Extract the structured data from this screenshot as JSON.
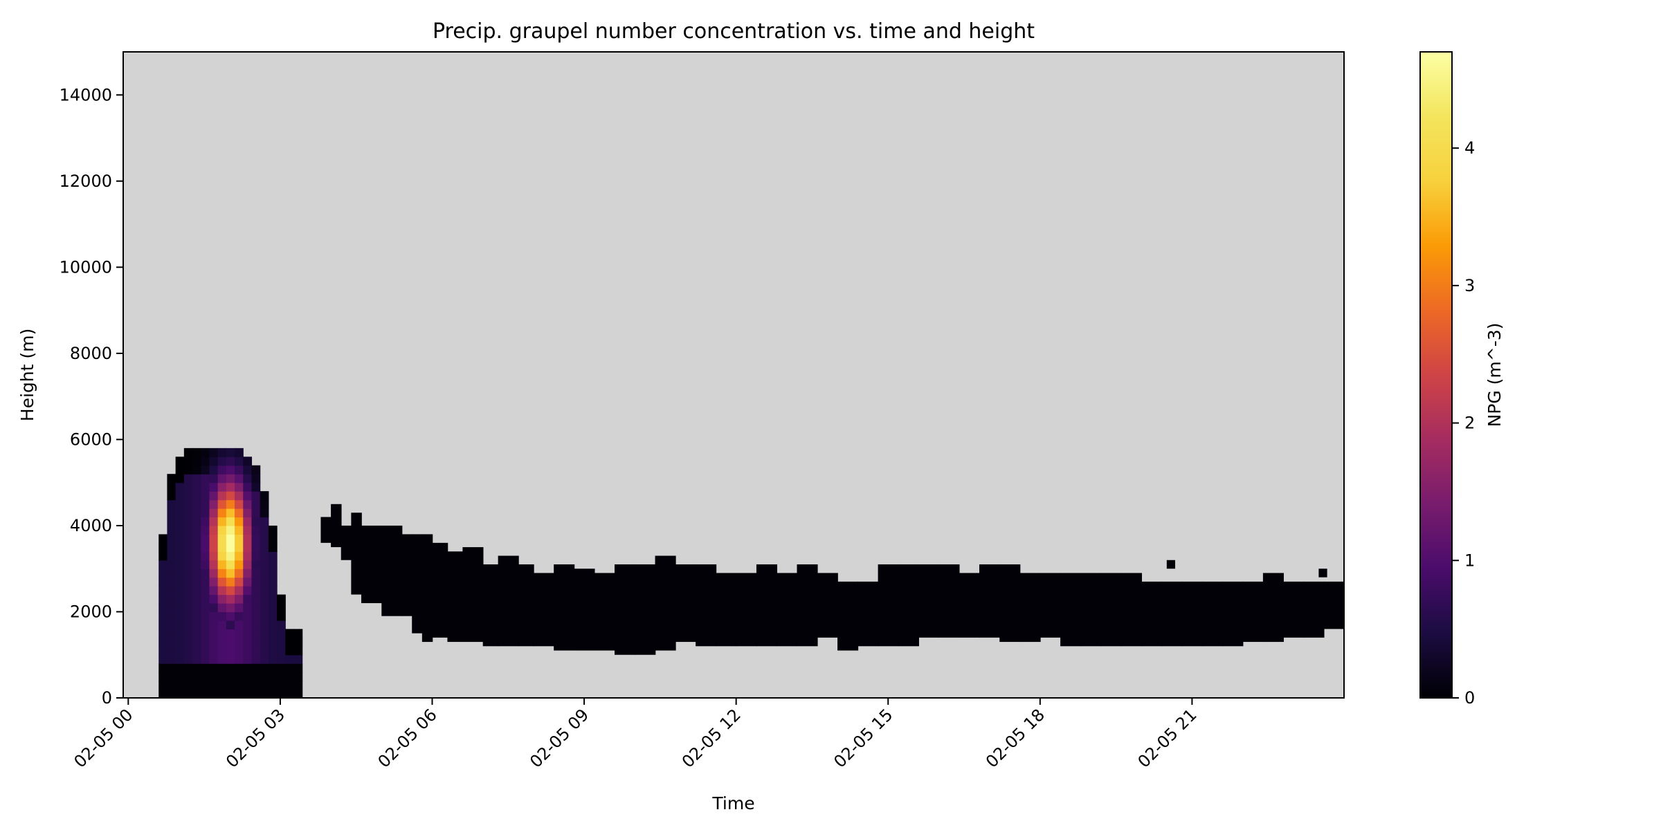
{
  "chart_data": {
    "type": "heatmap",
    "title": "Precip. graupel number concentration vs. time and height",
    "xlabel": "Time",
    "ylabel": "Height (m)",
    "colorbar_label": "NPG (m^-3)",
    "colormap": "inferno",
    "missing_color": "#d3d3d3",
    "xlim_hours": [
      -0.1,
      24.0
    ],
    "ylim": [
      0,
      15000
    ],
    "x_ticks": [
      {
        "hour": 0,
        "label": "02-05 00"
      },
      {
        "hour": 3,
        "label": "02-05 03"
      },
      {
        "hour": 6,
        "label": "02-05 06"
      },
      {
        "hour": 9,
        "label": "02-05 09"
      },
      {
        "hour": 12,
        "label": "02-05 12"
      },
      {
        "hour": 15,
        "label": "02-05 15"
      },
      {
        "hour": 18,
        "label": "02-05 18"
      },
      {
        "hour": 21,
        "label": "02-05 21"
      }
    ],
    "y_ticks": [
      0,
      2000,
      4000,
      6000,
      8000,
      10000,
      12000,
      14000
    ],
    "colorbar_range": [
      0,
      4.7
    ],
    "colorbar_ticks": [
      0,
      1,
      2,
      3,
      4
    ],
    "grid": false,
    "time_step_hours": 0.1667,
    "height_step_m": 200,
    "convective_cell": {
      "start_hour": 0.6,
      "end_hour": 3.3,
      "peak_hour": 2.0,
      "peak_height_m": 3600,
      "peak_value": 4.7,
      "top_profile": [
        [
          0.6,
          2600
        ],
        [
          0.77,
          5000
        ],
        [
          0.95,
          5600
        ],
        [
          1.3,
          5800
        ],
        [
          2.25,
          5800
        ],
        [
          2.45,
          5600
        ],
        [
          2.6,
          5200
        ],
        [
          2.8,
          4300
        ],
        [
          2.95,
          3200
        ],
        [
          3.1,
          1500
        ],
        [
          3.3,
          1500
        ]
      ]
    },
    "stratiform_layer": [
      [
        3.8,
        3600,
        4200
      ],
      [
        4.0,
        3500,
        4500
      ],
      [
        4.2,
        3200,
        4000
      ],
      [
        4.4,
        2400,
        4300
      ],
      [
        4.6,
        2200,
        4000
      ],
      [
        5.0,
        1900,
        4000
      ],
      [
        5.4,
        1900,
        3800
      ],
      [
        5.6,
        1500,
        3800
      ],
      [
        5.8,
        1300,
        3800
      ],
      [
        6.0,
        1400,
        3600
      ],
      [
        6.3,
        1300,
        3400
      ],
      [
        6.6,
        1300,
        3500
      ],
      [
        7.0,
        1200,
        3100
      ],
      [
        7.3,
        1200,
        3300
      ],
      [
        7.7,
        1200,
        3100
      ],
      [
        8.0,
        1200,
        2900
      ],
      [
        8.4,
        1100,
        3100
      ],
      [
        8.8,
        1100,
        3000
      ],
      [
        9.2,
        1100,
        2900
      ],
      [
        9.6,
        1000,
        3100
      ],
      [
        10.0,
        1000,
        3100
      ],
      [
        10.4,
        1100,
        3300
      ],
      [
        10.8,
        1300,
        3100
      ],
      [
        11.2,
        1200,
        3100
      ],
      [
        11.6,
        1200,
        2900
      ],
      [
        12.0,
        1200,
        2900
      ],
      [
        12.4,
        1200,
        3100
      ],
      [
        12.8,
        1200,
        2900
      ],
      [
        13.2,
        1200,
        3100
      ],
      [
        13.6,
        1400,
        2900
      ],
      [
        14.0,
        1100,
        2700
      ],
      [
        14.4,
        1200,
        2700
      ],
      [
        14.8,
        1200,
        3100
      ],
      [
        15.2,
        1200,
        3100
      ],
      [
        15.6,
        1400,
        3100
      ],
      [
        16.0,
        1400,
        3100
      ],
      [
        16.4,
        1400,
        2900
      ],
      [
        16.8,
        1400,
        3100
      ],
      [
        17.2,
        1300,
        3100
      ],
      [
        17.6,
        1300,
        2900
      ],
      [
        18.0,
        1400,
        2900
      ],
      [
        18.4,
        1200,
        2900
      ],
      [
        18.8,
        1200,
        2900
      ],
      [
        19.2,
        1200,
        2900
      ],
      [
        19.6,
        1200,
        2900
      ],
      [
        20.0,
        1200,
        2700
      ],
      [
        20.4,
        1200,
        2700
      ],
      [
        20.8,
        1200,
        2700
      ],
      [
        21.2,
        1200,
        2700
      ],
      [
        21.6,
        1200,
        2700
      ],
      [
        22.0,
        1300,
        2700
      ],
      [
        22.4,
        1300,
        2900
      ],
      [
        22.8,
        1400,
        2700
      ],
      [
        23.2,
        1400,
        2700
      ],
      [
        23.6,
        1600,
        2700
      ],
      [
        23.95,
        1600,
        2700
      ]
    ],
    "isolated_cells": [
      {
        "hour": 20.5,
        "height_m": 3000
      },
      {
        "hour": 23.5,
        "height_m": 2800
      }
    ]
  }
}
